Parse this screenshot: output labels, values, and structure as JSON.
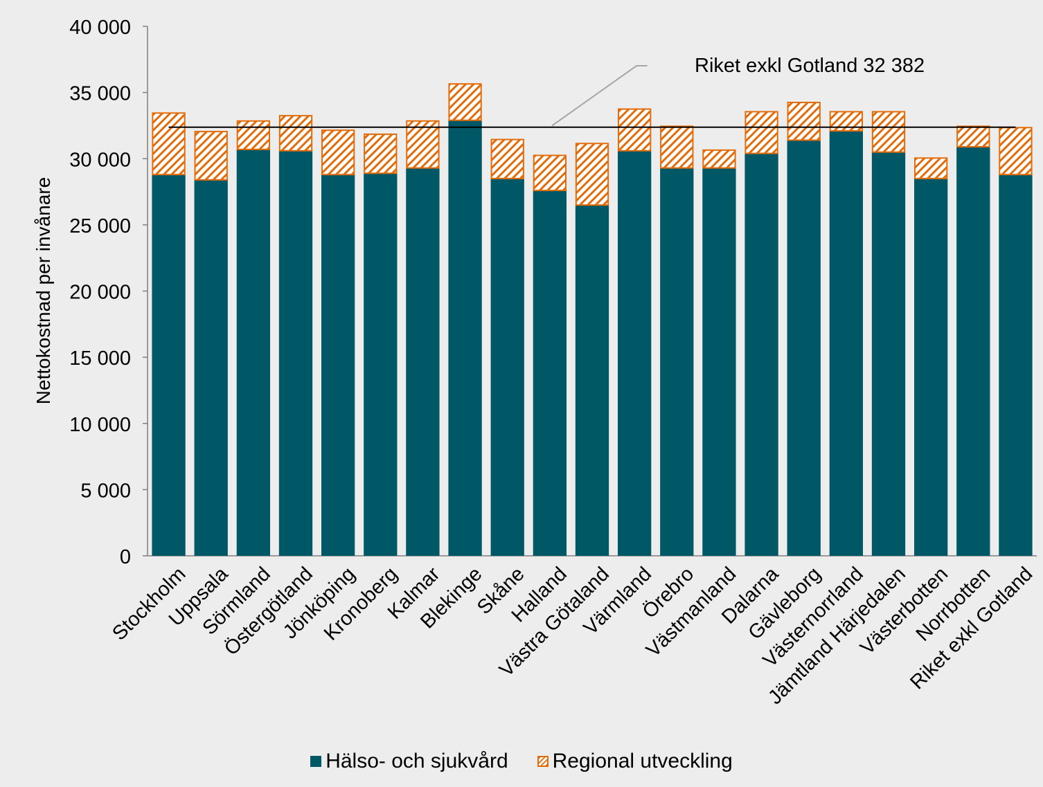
{
  "chart_data": {
    "type": "bar",
    "stacked": true,
    "title": "",
    "xlabel": "",
    "ylabel": "Nettokostnad per invånare",
    "ylim": [
      0,
      40000
    ],
    "yticks": [
      0,
      5000,
      10000,
      15000,
      20000,
      25000,
      30000,
      35000,
      40000
    ],
    "ytick_labels": [
      "0",
      "5 000",
      "10 000",
      "15 000",
      "20 000",
      "25 000",
      "30 000",
      "35 000",
      "40 000"
    ],
    "categories": [
      "Stockholm",
      "Uppsala",
      "Sörmland",
      "Östergötland",
      "Jönköping",
      "Kronoberg",
      "Kalmar",
      "Blekinge",
      "Skåne",
      "Halland",
      "Västra Götaland",
      "Värmland",
      "Örebro",
      "Västmanland",
      "Dalarna",
      "Gävleborg",
      "Västernorrland",
      "Jämtland Härjedalen",
      "Västerbotten",
      "Norrbotten",
      "Riket exkl Gotland"
    ],
    "series": [
      {
        "name": "Hälso- och sjukvård",
        "color": "#005866",
        "values": [
          28800,
          28400,
          30700,
          30600,
          28800,
          28900,
          29300,
          32900,
          28500,
          27600,
          26500,
          30600,
          29300,
          29300,
          30400,
          31400,
          32100,
          30500,
          28500,
          30900,
          28800
        ]
      },
      {
        "name": "Regional utveckling",
        "color": "#e36c0a",
        "pattern": "diagonal-hatch",
        "values": [
          4700,
          3700,
          2200,
          2700,
          3400,
          3000,
          3600,
          2800,
          3000,
          2700,
          4700,
          3200,
          3200,
          1400,
          3200,
          2900,
          1500,
          3100,
          1600,
          1600,
          3600
        ]
      }
    ],
    "reference_line": {
      "value": 32382,
      "label": "Riket exkl Gotland 32 382"
    },
    "grid": false,
    "legend": "bottom"
  }
}
